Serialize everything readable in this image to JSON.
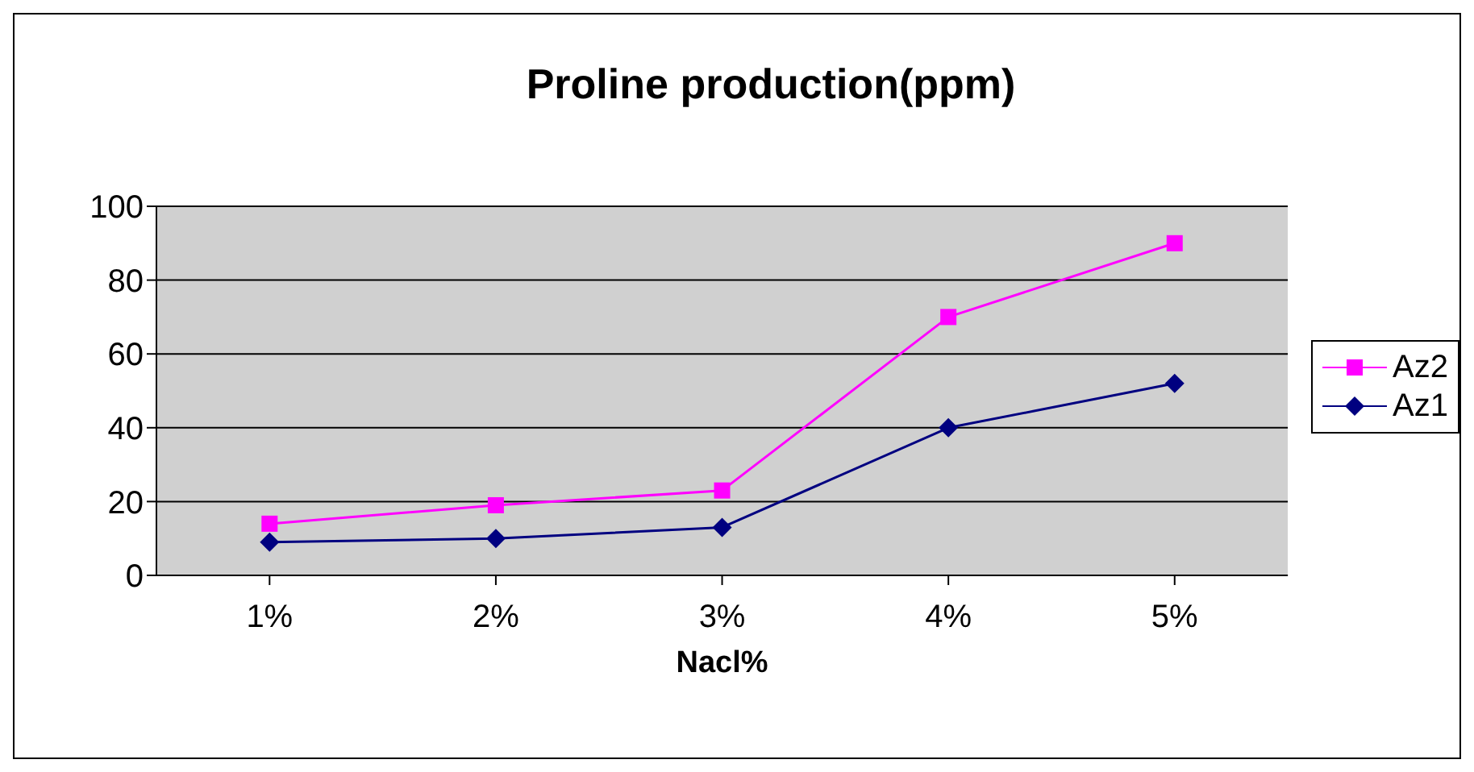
{
  "chart_data": {
    "type": "line",
    "title": "Proline production(ppm)",
    "xlabel": "Nacl%",
    "categories": [
      "1%",
      "2%",
      "3%",
      "4%",
      "5%"
    ],
    "series": [
      {
        "name": "Az2",
        "color": "#ff00ff",
        "marker": "square",
        "values": [
          14,
          19,
          23,
          70,
          90
        ]
      },
      {
        "name": "Az1",
        "color": "#000080",
        "marker": "diamond",
        "values": [
          9,
          10,
          13,
          40,
          52
        ]
      }
    ],
    "ylim": [
      0,
      100
    ],
    "yticks": [
      0,
      20,
      40,
      60,
      80,
      100
    ],
    "grid": "y",
    "legend": "right"
  }
}
